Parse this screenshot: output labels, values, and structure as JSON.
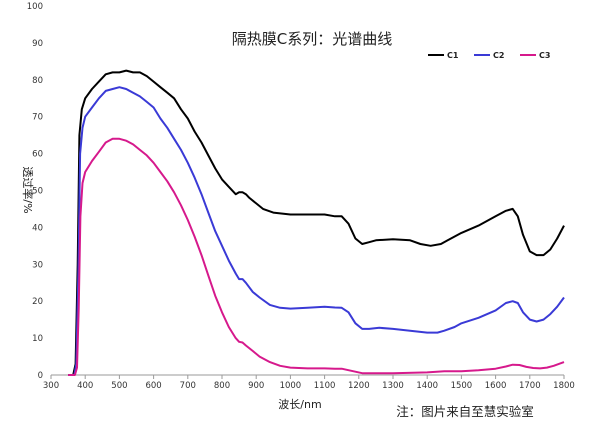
{
  "chart_data": {
    "type": "line",
    "title": "隔热膜C系列：光谱曲线",
    "xlabel": "波长/nm",
    "ylabel": "透过率/%",
    "note": "注：图片来自至慧实验室",
    "xlim": [
      300,
      1800
    ],
    "ylim": [
      0,
      100
    ],
    "xticks": [
      "300",
      "400",
      "500",
      "600",
      "700",
      "800",
      "900",
      "1000",
      "1100",
      "1200",
      "1300",
      "1400",
      "1500",
      "1600",
      "1700",
      "1800"
    ],
    "yticks": [
      "0",
      "10",
      "20",
      "30",
      "40",
      "50",
      "60",
      "70",
      "80",
      "90",
      "100"
    ],
    "grid": false,
    "legend_position": "top-right",
    "series": [
      {
        "name": "C1",
        "color": "#000000",
        "points": [
          [
            350,
            0
          ],
          [
            365,
            0
          ],
          [
            372,
            3
          ],
          [
            378,
            30
          ],
          [
            383,
            65
          ],
          [
            390,
            72
          ],
          [
            400,
            75
          ],
          [
            420,
            77.5
          ],
          [
            440,
            79.5
          ],
          [
            460,
            81.5
          ],
          [
            480,
            82
          ],
          [
            500,
            82
          ],
          [
            520,
            82.5
          ],
          [
            540,
            82
          ],
          [
            560,
            82
          ],
          [
            580,
            81
          ],
          [
            600,
            79.5
          ],
          [
            620,
            78
          ],
          [
            640,
            76.5
          ],
          [
            660,
            75
          ],
          [
            680,
            72
          ],
          [
            700,
            69.5
          ],
          [
            720,
            66
          ],
          [
            740,
            63
          ],
          [
            760,
            59.5
          ],
          [
            780,
            56
          ],
          [
            800,
            53
          ],
          [
            820,
            51
          ],
          [
            840,
            49
          ],
          [
            850,
            49.5
          ],
          [
            860,
            49.5
          ],
          [
            870,
            49
          ],
          [
            880,
            48
          ],
          [
            900,
            46.5
          ],
          [
            920,
            45
          ],
          [
            950,
            44
          ],
          [
            1000,
            43.5
          ],
          [
            1050,
            43.5
          ],
          [
            1100,
            43.5
          ],
          [
            1130,
            43
          ],
          [
            1150,
            43
          ],
          [
            1170,
            41
          ],
          [
            1190,
            37
          ],
          [
            1210,
            35.5
          ],
          [
            1230,
            36
          ],
          [
            1250,
            36.5
          ],
          [
            1300,
            36.8
          ],
          [
            1350,
            36.5
          ],
          [
            1380,
            35.5
          ],
          [
            1410,
            35
          ],
          [
            1440,
            35.5
          ],
          [
            1460,
            36.5
          ],
          [
            1500,
            38.5
          ],
          [
            1550,
            40.5
          ],
          [
            1600,
            43
          ],
          [
            1630,
            44.5
          ],
          [
            1650,
            45
          ],
          [
            1665,
            43
          ],
          [
            1680,
            38
          ],
          [
            1700,
            33.5
          ],
          [
            1720,
            32.5
          ],
          [
            1740,
            32.5
          ],
          [
            1760,
            34
          ],
          [
            1780,
            37
          ],
          [
            1800,
            40.5
          ]
        ]
      },
      {
        "name": "C2",
        "color": "#3a3ad6",
        "points": [
          [
            350,
            0
          ],
          [
            368,
            0
          ],
          [
            374,
            3
          ],
          [
            380,
            28
          ],
          [
            385,
            60
          ],
          [
            392,
            67
          ],
          [
            400,
            70
          ],
          [
            420,
            72.5
          ],
          [
            440,
            75
          ],
          [
            460,
            77
          ],
          [
            480,
            77.5
          ],
          [
            500,
            78
          ],
          [
            520,
            77.5
          ],
          [
            540,
            76.5
          ],
          [
            560,
            75.5
          ],
          [
            580,
            74
          ],
          [
            600,
            72.5
          ],
          [
            620,
            69.5
          ],
          [
            640,
            67
          ],
          [
            660,
            64
          ],
          [
            680,
            61
          ],
          [
            700,
            57.5
          ],
          [
            720,
            53.5
          ],
          [
            740,
            49
          ],
          [
            760,
            44
          ],
          [
            780,
            39
          ],
          [
            800,
            35
          ],
          [
            820,
            31
          ],
          [
            840,
            27.5
          ],
          [
            850,
            26
          ],
          [
            860,
            26
          ],
          [
            870,
            25
          ],
          [
            890,
            22.5
          ],
          [
            910,
            21
          ],
          [
            940,
            19
          ],
          [
            970,
            18.2
          ],
          [
            1000,
            18
          ],
          [
            1050,
            18.2
          ],
          [
            1100,
            18.5
          ],
          [
            1130,
            18.3
          ],
          [
            1150,
            18.2
          ],
          [
            1170,
            17
          ],
          [
            1190,
            14
          ],
          [
            1210,
            12.5
          ],
          [
            1230,
            12.5
          ],
          [
            1260,
            12.8
          ],
          [
            1300,
            12.5
          ],
          [
            1350,
            12
          ],
          [
            1400,
            11.5
          ],
          [
            1430,
            11.5
          ],
          [
            1450,
            12
          ],
          [
            1480,
            13
          ],
          [
            1500,
            14
          ],
          [
            1550,
            15.5
          ],
          [
            1600,
            17.5
          ],
          [
            1630,
            19.5
          ],
          [
            1650,
            20
          ],
          [
            1665,
            19.5
          ],
          [
            1680,
            17
          ],
          [
            1700,
            15
          ],
          [
            1720,
            14.5
          ],
          [
            1740,
            15
          ],
          [
            1760,
            16.5
          ],
          [
            1780,
            18.5
          ],
          [
            1800,
            21
          ]
        ]
      },
      {
        "name": "C3",
        "color": "#d6198c",
        "points": [
          [
            350,
            0
          ],
          [
            370,
            0
          ],
          [
            376,
            2
          ],
          [
            381,
            18
          ],
          [
            386,
            43
          ],
          [
            392,
            52
          ],
          [
            400,
            55
          ],
          [
            420,
            58
          ],
          [
            440,
            60.5
          ],
          [
            460,
            63
          ],
          [
            480,
            64
          ],
          [
            500,
            64
          ],
          [
            520,
            63.5
          ],
          [
            540,
            62.5
          ],
          [
            560,
            61
          ],
          [
            580,
            59.5
          ],
          [
            600,
            57.5
          ],
          [
            620,
            55
          ],
          [
            640,
            52.5
          ],
          [
            660,
            49.5
          ],
          [
            680,
            46
          ],
          [
            700,
            42
          ],
          [
            720,
            37.5
          ],
          [
            740,
            32.5
          ],
          [
            760,
            27
          ],
          [
            780,
            21.5
          ],
          [
            800,
            17
          ],
          [
            820,
            13
          ],
          [
            840,
            10
          ],
          [
            850,
            9
          ],
          [
            860,
            8.8
          ],
          [
            870,
            8
          ],
          [
            890,
            6.5
          ],
          [
            910,
            5
          ],
          [
            940,
            3.5
          ],
          [
            970,
            2.5
          ],
          [
            1000,
            2
          ],
          [
            1050,
            1.8
          ],
          [
            1100,
            1.8
          ],
          [
            1130,
            1.7
          ],
          [
            1150,
            1.7
          ],
          [
            1170,
            1.3
          ],
          [
            1190,
            0.9
          ],
          [
            1210,
            0.5
          ],
          [
            1250,
            0.5
          ],
          [
            1300,
            0.5
          ],
          [
            1400,
            0.7
          ],
          [
            1450,
            1
          ],
          [
            1500,
            1
          ],
          [
            1550,
            1.3
          ],
          [
            1600,
            1.7
          ],
          [
            1630,
            2.3
          ],
          [
            1650,
            2.8
          ],
          [
            1670,
            2.7
          ],
          [
            1690,
            2.2
          ],
          [
            1710,
            1.9
          ],
          [
            1730,
            1.8
          ],
          [
            1750,
            2
          ],
          [
            1770,
            2.5
          ],
          [
            1800,
            3.5
          ]
        ]
      }
    ]
  }
}
